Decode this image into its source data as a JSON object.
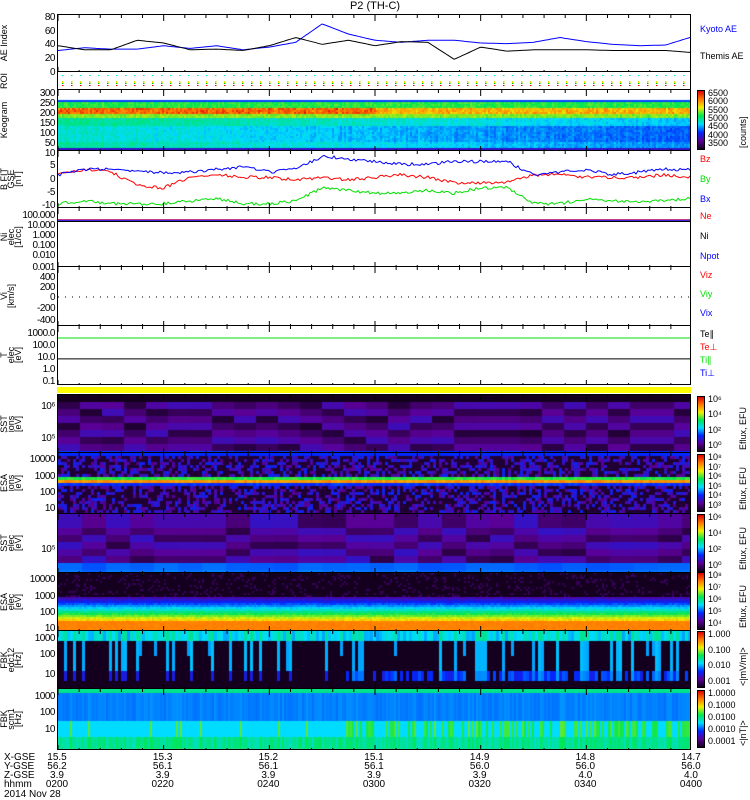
{
  "title": "P2 (TH-C)",
  "date_label": "2014 Nov 28",
  "chart_data": [
    {
      "id": "ae",
      "type": "line",
      "ylabel": "AE Index",
      "ylim": [
        0,
        85
      ],
      "yticks": [
        "0",
        "20",
        "40",
        "60",
        "80"
      ],
      "ytickvals": [
        0,
        20,
        40,
        60,
        80
      ],
      "x_minutes": [
        0,
        5,
        10,
        15,
        20,
        25,
        30,
        35,
        40,
        45,
        50,
        55,
        60,
        65,
        70,
        75,
        80,
        85,
        90,
        95,
        100,
        105,
        110,
        115,
        120
      ],
      "series": [
        {
          "name": "Kyoto AE",
          "color": "#0000ff",
          "values": [
            33,
            37,
            35,
            35,
            40,
            36,
            40,
            34,
            38,
            45,
            72,
            57,
            48,
            45,
            48,
            48,
            44,
            43,
            45,
            52,
            46,
            42,
            40,
            41,
            53
          ]
        },
        {
          "name": "Themis AE",
          "color": "#000000",
          "values": [
            40,
            34,
            34,
            48,
            44,
            34,
            35,
            33,
            40,
            52,
            42,
            48,
            40,
            46,
            45,
            20,
            38,
            32,
            34,
            34,
            34,
            33,
            33,
            33,
            30
          ]
        }
      ]
    },
    {
      "id": "roi",
      "type": "scatter",
      "ylabel": "ROI"
    },
    {
      "id": "keo",
      "type": "heatmap",
      "ylabel": "Keogram",
      "ylim": [
        0,
        300
      ],
      "yticks": [
        "10",
        "50",
        "100",
        "150",
        "200",
        "250",
        "300"
      ],
      "ytickvals": [
        10,
        50,
        100,
        150,
        200,
        250,
        300
      ],
      "colorbar": {
        "labels": [
          "6500",
          "6000",
          "5500",
          "5000",
          "4500",
          "4000",
          "3500"
        ],
        "unit": "[counts]"
      }
    },
    {
      "id": "bfit",
      "type": "line",
      "ylabel": "B FIT",
      "ylabel2": "GSE",
      "ylabel3": "[nT]",
      "ylim": [
        -11,
        11
      ],
      "yticks": [
        "5",
        "0",
        "-5",
        "-10"
      ],
      "ytickvals": [
        5,
        0,
        -5,
        -10
      ],
      "x_minutes": [
        0,
        5,
        10,
        15,
        20,
        25,
        30,
        35,
        40,
        45,
        50,
        55,
        60,
        65,
        70,
        75,
        80,
        85,
        90,
        95,
        100,
        105,
        110,
        115,
        120
      ],
      "series": [
        {
          "name": "Bz",
          "color": "#ff0000",
          "values": [
            2,
            4,
            3,
            -2,
            -3,
            1,
            2,
            1,
            1,
            0,
            1,
            0,
            1,
            2,
            1,
            -1,
            -1,
            -1,
            2,
            2,
            1,
            1,
            1,
            2,
            1
          ]
        },
        {
          "name": "By",
          "color": "#00e000",
          "values": [
            -9,
            -8,
            -9,
            -9,
            -9,
            -8,
            -7,
            -9,
            -9,
            -8,
            -3,
            -4,
            -5,
            -5,
            -4,
            -5,
            -3,
            -3,
            -9,
            -9,
            -7,
            -8,
            -8,
            -8,
            -7
          ]
        },
        {
          "name": "Bx",
          "color": "#0000ff",
          "values": [
            2,
            4,
            4,
            3,
            3,
            3,
            4,
            5,
            3,
            4,
            9,
            8,
            7,
            6,
            6,
            7,
            7,
            7,
            2,
            3,
            4,
            2,
            3,
            4,
            4
          ]
        }
      ]
    },
    {
      "id": "dens",
      "type": "line",
      "ylabel": "Ni",
      "ylabel2": "elec",
      "ylabel3": "[1/cc]",
      "scale": "log",
      "ylim": [
        0.001,
        100
      ],
      "yticks": [
        "100.000",
        "10.000",
        "1.000",
        "0.100",
        "0.010",
        "0.001"
      ],
      "ytickvals": [
        100,
        10,
        1,
        0.1,
        0.01,
        0.001
      ],
      "series": [
        {
          "name": "Ne",
          "color": "#ff0000",
          "values": [
            10
          ]
        },
        {
          "name": "Ni",
          "color": "#000000",
          "values": [
            7.5
          ]
        },
        {
          "name": "Npot",
          "color": "#0000ff",
          "values": [
            9.5
          ]
        }
      ]
    },
    {
      "id": "vel",
      "type": "line",
      "ylabel": "Vi",
      "ylabel2": "[km/s]",
      "ylim": [
        -500,
        500
      ],
      "yticks": [
        "400",
        "200",
        "0",
        "-200",
        "-400"
      ],
      "ytickvals": [
        400,
        200,
        0,
        -200,
        -400
      ],
      "series": [
        {
          "name": "Viz",
          "color": "#ff0000"
        },
        {
          "name": "Viy",
          "color": "#00e000"
        },
        {
          "name": "Vix",
          "color": "#0000ff"
        }
      ]
    },
    {
      "id": "temp",
      "type": "line",
      "ylabel": "T",
      "ylabel2": "elec",
      "ylabel3": "[eV]",
      "scale": "log",
      "ylim": [
        0.05,
        5000
      ],
      "yticks": [
        "1000.0",
        "100.0",
        "10.0",
        "1.0",
        "0.1"
      ],
      "ytickvals": [
        1000,
        100,
        10,
        1,
        0.1
      ],
      "series": [
        {
          "name": "Te∥",
          "color": "#000000",
          "values": [
            9
          ]
        },
        {
          "name": "Te⊥",
          "color": "#ff0000"
        },
        {
          "name": "Ti∥",
          "color": "#00e000",
          "values": [
            500
          ]
        },
        {
          "name": "Ti⊥",
          "color": "#0000ff"
        }
      ]
    },
    {
      "id": "sst_i",
      "type": "heatmap",
      "ylabel": "SST",
      "ylabel2": "ions",
      "ylabel3": "[eV]",
      "yticks": [
        "10⁶",
        "10⁵"
      ],
      "colorbar": {
        "labels": [
          "10⁶",
          "10⁴",
          "10²",
          "10⁰"
        ],
        "unit": "Eflux, EFU"
      }
    },
    {
      "id": "esa_i",
      "type": "heatmap",
      "ylabel": "ESA",
      "ylabel2": "ions",
      "ylabel3": "[eV]",
      "yticks": [
        "10000",
        "1000",
        "100",
        "10"
      ],
      "colorbar": {
        "labels": [
          "10⁸",
          "10⁷",
          "10⁶",
          "10⁵",
          "10⁴",
          "10³"
        ],
        "unit": "Eflux, EFU"
      }
    },
    {
      "id": "sst_e",
      "type": "heatmap",
      "ylabel": "SST",
      "ylabel2": "elec",
      "ylabel3": "[eV]",
      "yticks": [
        "10⁵"
      ],
      "colorbar": {
        "labels": [
          "10⁶",
          "10⁴",
          "10²",
          "10⁰"
        ],
        "unit": "Eflux, EFU"
      }
    },
    {
      "id": "esa_e",
      "type": "heatmap",
      "ylabel": "ESA",
      "ylabel2": "elec",
      "ylabel3": "[eV]",
      "yticks": [
        "10000",
        "1000",
        "100",
        "10"
      ],
      "colorbar": {
        "labels": [
          "10⁸",
          "10⁷",
          "10⁶",
          "10⁵",
          "10⁴"
        ],
        "unit": "Eflux, EFU"
      }
    },
    {
      "id": "edc",
      "type": "heatmap",
      "ylabel": "FBK",
      "ylabel2": "edc12",
      "ylabel3": "[Hz]",
      "yticks": [
        "1000",
        "100",
        "10"
      ],
      "colorbar": {
        "labels": [
          "1.000",
          "0.100",
          "0.010",
          "0.001"
        ],
        "unit": "<|mV/m|>"
      }
    },
    {
      "id": "scm",
      "type": "heatmap",
      "ylabel": "FBK",
      "ylabel2": "scm1",
      "ylabel3": "[Hz]",
      "yticks": [
        "1000",
        "100",
        "10"
      ],
      "colorbar": {
        "labels": [
          "1.0000",
          "0.1000",
          "0.0100",
          "0.0010",
          "0.0001"
        ],
        "unit": "<|nT|>"
      }
    }
  ],
  "x_axis": {
    "rows": [
      {
        "label": "X-GSE",
        "values": [
          "15.5",
          "15.3",
          "15.2",
          "15.1",
          "14.9",
          "14.8",
          "14.7"
        ]
      },
      {
        "label": "Y-GSE",
        "values": [
          "56.2",
          "56.1",
          "56.1",
          "56.1",
          "56.0",
          "56.0",
          "56.0"
        ]
      },
      {
        "label": "Z-GSE",
        "values": [
          "3.9",
          "3.9",
          "3.9",
          "3.9",
          "3.9",
          "4.0",
          "4.0"
        ]
      },
      {
        "label": "hhmm",
        "values": [
          "0200",
          "0220",
          "0240",
          "0300",
          "0320",
          "0340",
          "0400"
        ]
      }
    ]
  }
}
